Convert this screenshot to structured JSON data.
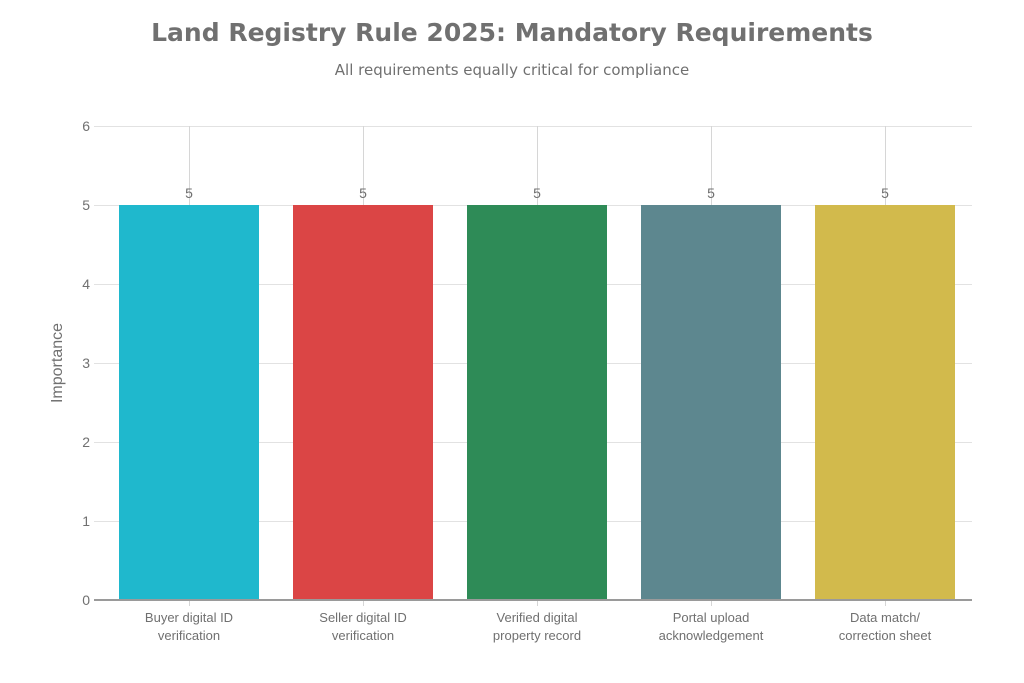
{
  "chart_data": {
    "type": "bar",
    "title": "Land Registry Rule 2025: Mandatory Requirements",
    "subtitle": "All requirements equally critical for compliance",
    "xlabel": "",
    "ylabel": "Importance",
    "ylim": [
      0,
      6
    ],
    "yticks": [
      "0",
      "1",
      "2",
      "3",
      "4",
      "5",
      "6"
    ],
    "grid": true,
    "legend": null,
    "categories": [
      "Buyer digital ID verification",
      "Seller digital ID verification",
      "Verified digital property record",
      "Portal upload acknowledgement",
      "Data match/ correction sheet"
    ],
    "category_lines": [
      [
        "Buyer digital ID",
        "verification"
      ],
      [
        "Seller digital ID",
        "verification"
      ],
      [
        "Verified digital",
        "property record"
      ],
      [
        "Portal upload",
        "acknowledgement"
      ],
      [
        "Data match/",
        "correction sheet"
      ]
    ],
    "values": [
      5,
      5,
      5,
      5,
      5
    ],
    "value_labels": [
      "5",
      "5",
      "5",
      "5",
      "5"
    ],
    "colors": [
      "#1fb8cd",
      "#db4545",
      "#2e8b57",
      "#5d878f",
      "#d2ba4c"
    ]
  }
}
